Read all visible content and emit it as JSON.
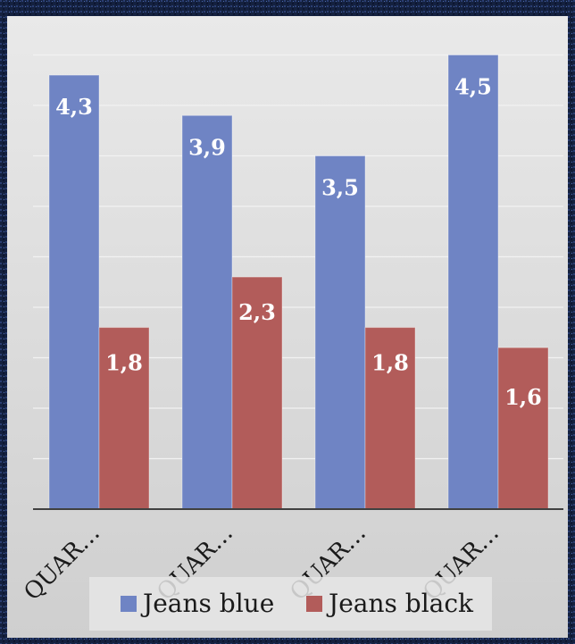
{
  "chart_data": {
    "type": "bar",
    "categories": [
      "QUAR…",
      "QUAR…",
      "QUAR…",
      "QUAR…"
    ],
    "series": [
      {
        "name": "Jeans blue",
        "values": [
          4.3,
          3.9,
          3.5,
          4.5
        ],
        "color": "#6f84c4"
      },
      {
        "name": "Jeans black",
        "values": [
          1.8,
          2.3,
          1.8,
          1.6
        ],
        "color": "#b25c5a"
      }
    ],
    "data_labels": {
      "series0": [
        "4,3",
        "3,9",
        "3,5",
        "4,5"
      ],
      "series1": [
        "1,8",
        "2,3",
        "1,8",
        "1,6"
      ]
    },
    "ylim": [
      0,
      4.5
    ],
    "grid": true,
    "legend_position": "bottom",
    "title": "",
    "xlabel": "",
    "ylabel": ""
  },
  "colors": {
    "page_background": "#14213f",
    "plot_background": "#d9d9d9",
    "gridline": "#f2f2f2",
    "axis": "#404040",
    "label_text": "#ffffff",
    "legend_text": "#1a1a1a",
    "tick_text": "#1a1a1a"
  }
}
